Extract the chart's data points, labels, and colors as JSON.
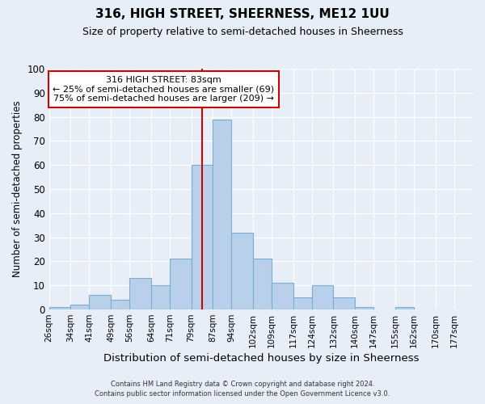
{
  "title": "316, HIGH STREET, SHEERNESS, ME12 1UU",
  "subtitle": "Size of property relative to semi-detached houses in Sheerness",
  "xlabel": "Distribution of semi-detached houses by size in Sheerness",
  "ylabel": "Number of semi-detached properties",
  "footer_line1": "Contains HM Land Registry data © Crown copyright and database right 2024.",
  "footer_line2": "Contains public sector information licensed under the Open Government Licence v3.0.",
  "bin_labels": [
    "26sqm",
    "34sqm",
    "41sqm",
    "49sqm",
    "56sqm",
    "64sqm",
    "71sqm",
    "79sqm",
    "87sqm",
    "94sqm",
    "102sqm",
    "109sqm",
    "117sqm",
    "124sqm",
    "132sqm",
    "140sqm",
    "147sqm",
    "155sqm",
    "162sqm",
    "170sqm",
    "177sqm"
  ],
  "bin_edges": [
    26,
    34,
    41,
    49,
    56,
    64,
    71,
    79,
    87,
    94,
    102,
    109,
    117,
    124,
    132,
    140,
    147,
    155,
    162,
    170,
    177
  ],
  "bar_heights": [
    1,
    2,
    6,
    4,
    13,
    10,
    21,
    60,
    79,
    32,
    21,
    11,
    5,
    10,
    5,
    1,
    0,
    1,
    0,
    0
  ],
  "bar_color": "#b8d0ea",
  "bar_edge_color": "#7aadcf",
  "vline_x": 83,
  "vline_color": "#cc0000",
  "annotation_title": "316 HIGH STREET: 83sqm",
  "annotation_line1": "← 25% of semi-detached houses are smaller (69)",
  "annotation_line2": "75% of semi-detached houses are larger (209) →",
  "annotation_box_edgecolor": "#cc0000",
  "ylim": [
    0,
    100
  ],
  "yticks": [
    0,
    10,
    20,
    30,
    40,
    50,
    60,
    70,
    80,
    90,
    100
  ],
  "background_color": "#e8eef8",
  "grid_color": "#d0d8e8",
  "title_fontsize": 11,
  "subtitle_fontsize": 9
}
